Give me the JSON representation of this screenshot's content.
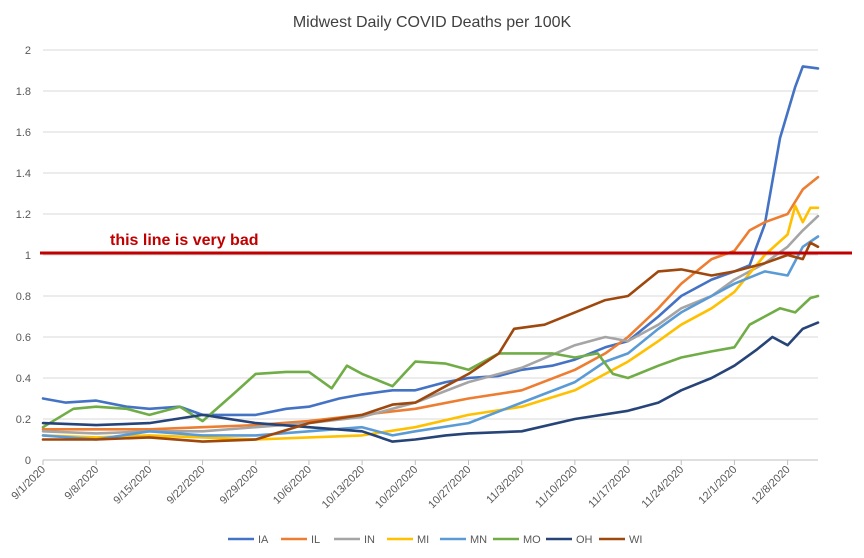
{
  "chart_data": {
    "type": "line",
    "title": "Midwest Daily COVID Deaths per 100K",
    "xlabel": "",
    "ylabel": "",
    "ylim": [
      0,
      2
    ],
    "yticks": [
      "0",
      "0.2",
      "0.4",
      "0.6",
      "0.8",
      "1",
      "1.2",
      "1.4",
      "1.6",
      "1.8",
      "2"
    ],
    "x_labels": [
      "9/1/2020",
      "9/8/2020",
      "9/15/2020",
      "9/22/2020",
      "9/29/2020",
      "10/6/2020",
      "10/13/2020",
      "10/20/2020",
      "10/27/2020",
      "11/3/2020",
      "11/10/2020",
      "11/17/2020",
      "11/24/2020",
      "12/1/2020",
      "12/8/2020"
    ],
    "x_start": "9/1/2020",
    "x_end": "12/12/2020",
    "grid": true,
    "legend_position": "bottom",
    "reference_line": {
      "value": 1.01,
      "label": "this line is very bad",
      "color": "#c00000"
    },
    "series": [
      {
        "name": "IA",
        "color": "#4472c4",
        "points": [
          [
            "9/1/2020",
            0.3
          ],
          [
            "9/4/2020",
            0.28
          ],
          [
            "9/8/2020",
            0.29
          ],
          [
            "9/12/2020",
            0.26
          ],
          [
            "9/15/2020",
            0.25
          ],
          [
            "9/19/2020",
            0.26
          ],
          [
            "9/22/2020",
            0.22
          ],
          [
            "9/26/2020",
            0.22
          ],
          [
            "9/29/2020",
            0.22
          ],
          [
            "10/3/2020",
            0.25
          ],
          [
            "10/6/2020",
            0.26
          ],
          [
            "10/10/2020",
            0.3
          ],
          [
            "10/13/2020",
            0.32
          ],
          [
            "10/17/2020",
            0.34
          ],
          [
            "10/20/2020",
            0.34
          ],
          [
            "10/24/2020",
            0.38
          ],
          [
            "10/27/2020",
            0.4
          ],
          [
            "10/31/2020",
            0.41
          ],
          [
            "11/3/2020",
            0.44
          ],
          [
            "11/7/2020",
            0.46
          ],
          [
            "11/10/2020",
            0.49
          ],
          [
            "11/14/2020",
            0.55
          ],
          [
            "11/17/2020",
            0.58
          ],
          [
            "11/21/2020",
            0.7
          ],
          [
            "11/24/2020",
            0.8
          ],
          [
            "11/28/2020",
            0.88
          ],
          [
            "12/1/2020",
            0.92
          ],
          [
            "12/3/2020",
            0.95
          ],
          [
            "12/5/2020",
            1.15
          ],
          [
            "12/7/2020",
            1.57
          ],
          [
            "12/9/2020",
            1.82
          ],
          [
            "12/10/2020",
            1.92
          ],
          [
            "12/12/2020",
            1.91
          ]
        ]
      },
      {
        "name": "IL",
        "color": "#ed7d31",
        "points": [
          [
            "9/1/2020",
            0.15
          ],
          [
            "9/8/2020",
            0.15
          ],
          [
            "9/15/2020",
            0.15
          ],
          [
            "9/22/2020",
            0.16
          ],
          [
            "9/29/2020",
            0.17
          ],
          [
            "10/6/2020",
            0.19
          ],
          [
            "10/13/2020",
            0.22
          ],
          [
            "10/20/2020",
            0.25
          ],
          [
            "10/27/2020",
            0.3
          ],
          [
            "11/3/2020",
            0.34
          ],
          [
            "11/10/2020",
            0.44
          ],
          [
            "11/14/2020",
            0.52
          ],
          [
            "11/17/2020",
            0.6
          ],
          [
            "11/21/2020",
            0.74
          ],
          [
            "11/24/2020",
            0.86
          ],
          [
            "11/28/2020",
            0.98
          ],
          [
            "12/1/2020",
            1.02
          ],
          [
            "12/3/2020",
            1.12
          ],
          [
            "12/5/2020",
            1.16
          ],
          [
            "12/8/2020",
            1.2
          ],
          [
            "12/10/2020",
            1.32
          ],
          [
            "12/12/2020",
            1.38
          ]
        ]
      },
      {
        "name": "IN",
        "color": "#a5a5a5",
        "points": [
          [
            "9/1/2020",
            0.14
          ],
          [
            "9/8/2020",
            0.13
          ],
          [
            "9/15/2020",
            0.14
          ],
          [
            "9/22/2020",
            0.14
          ],
          [
            "9/29/2020",
            0.16
          ],
          [
            "10/6/2020",
            0.18
          ],
          [
            "10/13/2020",
            0.21
          ],
          [
            "10/20/2020",
            0.28
          ],
          [
            "10/27/2020",
            0.38
          ],
          [
            "11/3/2020",
            0.45
          ],
          [
            "11/10/2020",
            0.56
          ],
          [
            "11/14/2020",
            0.6
          ],
          [
            "11/17/2020",
            0.58
          ],
          [
            "11/21/2020",
            0.66
          ],
          [
            "11/24/2020",
            0.74
          ],
          [
            "11/28/2020",
            0.8
          ],
          [
            "12/1/2020",
            0.88
          ],
          [
            "12/5/2020",
            0.96
          ],
          [
            "12/8/2020",
            1.04
          ],
          [
            "12/10/2020",
            1.12
          ],
          [
            "12/12/2020",
            1.19
          ]
        ]
      },
      {
        "name": "MI",
        "color": "#ffc000",
        "points": [
          [
            "9/1/2020",
            0.12
          ],
          [
            "9/8/2020",
            0.11
          ],
          [
            "9/15/2020",
            0.12
          ],
          [
            "9/22/2020",
            0.11
          ],
          [
            "9/29/2020",
            0.1
          ],
          [
            "10/6/2020",
            0.11
          ],
          [
            "10/13/2020",
            0.12
          ],
          [
            "10/20/2020",
            0.16
          ],
          [
            "10/27/2020",
            0.22
          ],
          [
            "11/3/2020",
            0.26
          ],
          [
            "11/10/2020",
            0.34
          ],
          [
            "11/14/2020",
            0.42
          ],
          [
            "11/17/2020",
            0.48
          ],
          [
            "11/21/2020",
            0.58
          ],
          [
            "11/24/2020",
            0.66
          ],
          [
            "11/28/2020",
            0.74
          ],
          [
            "12/1/2020",
            0.82
          ],
          [
            "12/5/2020",
            1.0
          ],
          [
            "12/8/2020",
            1.1
          ],
          [
            "12/9/2020",
            1.24
          ],
          [
            "12/10/2020",
            1.16
          ],
          [
            "12/11/2020",
            1.23
          ],
          [
            "12/12/2020",
            1.23
          ]
        ]
      },
      {
        "name": "MN",
        "color": "#5b9bd5",
        "points": [
          [
            "9/1/2020",
            0.12
          ],
          [
            "9/8/2020",
            0.1
          ],
          [
            "9/15/2020",
            0.14
          ],
          [
            "9/22/2020",
            0.12
          ],
          [
            "9/29/2020",
            0.12
          ],
          [
            "10/6/2020",
            0.14
          ],
          [
            "10/13/2020",
            0.16
          ],
          [
            "10/17/2020",
            0.12
          ],
          [
            "10/20/2020",
            0.14
          ],
          [
            "10/27/2020",
            0.18
          ],
          [
            "11/3/2020",
            0.28
          ],
          [
            "11/10/2020",
            0.38
          ],
          [
            "11/14/2020",
            0.48
          ],
          [
            "11/17/2020",
            0.52
          ],
          [
            "11/21/2020",
            0.64
          ],
          [
            "11/24/2020",
            0.72
          ],
          [
            "11/28/2020",
            0.8
          ],
          [
            "12/1/2020",
            0.86
          ],
          [
            "12/5/2020",
            0.92
          ],
          [
            "12/8/2020",
            0.9
          ],
          [
            "12/10/2020",
            1.04
          ],
          [
            "12/12/2020",
            1.09
          ]
        ]
      },
      {
        "name": "MO",
        "color": "#70ad47",
        "points": [
          [
            "9/1/2020",
            0.16
          ],
          [
            "9/5/2020",
            0.25
          ],
          [
            "9/8/2020",
            0.26
          ],
          [
            "9/12/2020",
            0.25
          ],
          [
            "9/15/2020",
            0.22
          ],
          [
            "9/19/2020",
            0.26
          ],
          [
            "9/22/2020",
            0.19
          ],
          [
            "9/26/2020",
            0.32
          ],
          [
            "9/29/2020",
            0.42
          ],
          [
            "10/3/2020",
            0.43
          ],
          [
            "10/6/2020",
            0.43
          ],
          [
            "10/9/2020",
            0.35
          ],
          [
            "10/11/2020",
            0.46
          ],
          [
            "10/13/2020",
            0.42
          ],
          [
            "10/17/2020",
            0.36
          ],
          [
            "10/20/2020",
            0.48
          ],
          [
            "10/24/2020",
            0.47
          ],
          [
            "10/27/2020",
            0.44
          ],
          [
            "10/31/2020",
            0.52
          ],
          [
            "11/3/2020",
            0.52
          ],
          [
            "11/7/2020",
            0.52
          ],
          [
            "11/10/2020",
            0.5
          ],
          [
            "11/13/2020",
            0.52
          ],
          [
            "11/15/2020",
            0.42
          ],
          [
            "11/17/2020",
            0.4
          ],
          [
            "11/21/2020",
            0.46
          ],
          [
            "11/24/2020",
            0.5
          ],
          [
            "11/28/2020",
            0.53
          ],
          [
            "12/1/2020",
            0.55
          ],
          [
            "12/3/2020",
            0.66
          ],
          [
            "12/5/2020",
            0.7
          ],
          [
            "12/7/2020",
            0.74
          ],
          [
            "12/9/2020",
            0.72
          ],
          [
            "12/11/2020",
            0.79
          ],
          [
            "12/12/2020",
            0.8
          ]
        ]
      },
      {
        "name": "OH",
        "color": "#264478",
        "points": [
          [
            "9/1/2020",
            0.18
          ],
          [
            "9/8/2020",
            0.17
          ],
          [
            "9/15/2020",
            0.18
          ],
          [
            "9/22/2020",
            0.22
          ],
          [
            "9/29/2020",
            0.18
          ],
          [
            "10/6/2020",
            0.16
          ],
          [
            "10/13/2020",
            0.14
          ],
          [
            "10/17/2020",
            0.09
          ],
          [
            "10/20/2020",
            0.1
          ],
          [
            "10/24/2020",
            0.12
          ],
          [
            "10/27/2020",
            0.13
          ],
          [
            "11/3/2020",
            0.14
          ],
          [
            "11/10/2020",
            0.2
          ],
          [
            "11/17/2020",
            0.24
          ],
          [
            "11/21/2020",
            0.28
          ],
          [
            "11/24/2020",
            0.34
          ],
          [
            "11/28/2020",
            0.4
          ],
          [
            "12/1/2020",
            0.46
          ],
          [
            "12/4/2020",
            0.54
          ],
          [
            "12/6/2020",
            0.6
          ],
          [
            "12/8/2020",
            0.56
          ],
          [
            "12/10/2020",
            0.64
          ],
          [
            "12/12/2020",
            0.67
          ]
        ]
      },
      {
        "name": "WI",
        "color": "#9e480e",
        "points": [
          [
            "9/1/2020",
            0.1
          ],
          [
            "9/8/2020",
            0.1
          ],
          [
            "9/15/2020",
            0.11
          ],
          [
            "9/22/2020",
            0.09
          ],
          [
            "9/29/2020",
            0.1
          ],
          [
            "10/6/2020",
            0.18
          ],
          [
            "10/13/2020",
            0.22
          ],
          [
            "10/17/2020",
            0.27
          ],
          [
            "10/20/2020",
            0.28
          ],
          [
            "10/24/2020",
            0.36
          ],
          [
            "10/27/2020",
            0.42
          ],
          [
            "10/31/2020",
            0.52
          ],
          [
            "11/2/2020",
            0.64
          ],
          [
            "11/6/2020",
            0.66
          ],
          [
            "11/10/2020",
            0.72
          ],
          [
            "11/14/2020",
            0.78
          ],
          [
            "11/17/2020",
            0.8
          ],
          [
            "11/21/2020",
            0.92
          ],
          [
            "11/24/2020",
            0.93
          ],
          [
            "11/28/2020",
            0.9
          ],
          [
            "12/1/2020",
            0.92
          ],
          [
            "12/5/2020",
            0.96
          ],
          [
            "12/8/2020",
            1.0
          ],
          [
            "12/10/2020",
            0.98
          ],
          [
            "12/11/2020",
            1.06
          ],
          [
            "12/12/2020",
            1.04
          ]
        ]
      }
    ]
  }
}
